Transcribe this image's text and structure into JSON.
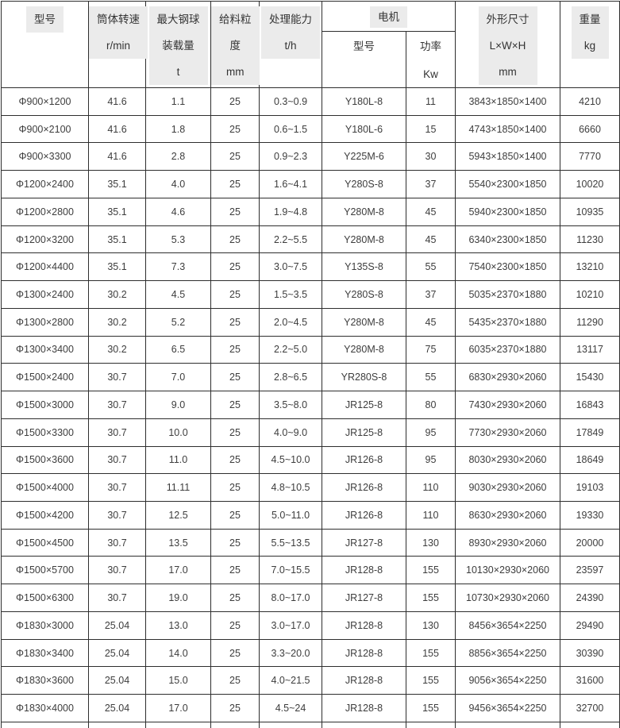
{
  "table": {
    "header": {
      "model": {
        "line1": "型号"
      },
      "speed": {
        "line1": "筒体转速",
        "line2": "r/min"
      },
      "ball_load": {
        "line1": "最大钢球",
        "line2": "装载量",
        "line3": "t"
      },
      "feed_size": {
        "line1": "给料粒",
        "line2": "度",
        "line3": "mm"
      },
      "capacity": {
        "line1": "处理能力",
        "line2": "t/h"
      },
      "motor_group": {
        "label": "电机"
      },
      "motor_model": {
        "line1": "型号"
      },
      "motor_power": {
        "line1": "功率",
        "line2": "Kw"
      },
      "dimensions": {
        "line1": "外形尺寸",
        "line2": "L×W×H",
        "line3": "mm"
      },
      "weight": {
        "line1": "重量",
        "line2": "kg"
      }
    },
    "columns": [
      "model",
      "speed-rpm",
      "max-ball-load-t",
      "feed-size-mm",
      "capacity-tph",
      "motor-model",
      "motor-power-kw",
      "dimensions-mm",
      "weight-kg"
    ],
    "rows": [
      [
        "Φ900×1200",
        "41.6",
        "1.1",
        "25",
        "0.3~0.9",
        "Y180L-8",
        "11",
        "3843×1850×1400",
        "4210"
      ],
      [
        "Φ900×2100",
        "41.6",
        "1.8",
        "25",
        "0.6~1.5",
        "Y180L-6",
        "15",
        "4743×1850×1400",
        "6660"
      ],
      [
        "Φ900×3300",
        "41.6",
        "2.8",
        "25",
        "0.9~2.3",
        "Y225M-6",
        "30",
        "5943×1850×1400",
        "7770"
      ],
      [
        "Φ1200×2400",
        "35.1",
        "4.0",
        "25",
        "1.6~4.1",
        "Y280S-8",
        "37",
        "5540×2300×1850",
        "10020"
      ],
      [
        "Φ1200×2800",
        "35.1",
        "4.6",
        "25",
        "1.9~4.8",
        "Y280M-8",
        "45",
        "5940×2300×1850",
        "10935"
      ],
      [
        "Φ1200×3200",
        "35.1",
        "5.3",
        "25",
        "2.2~5.5",
        "Y280M-8",
        "45",
        "6340×2300×1850",
        "11230"
      ],
      [
        "Φ1200×4400",
        "35.1",
        "7.3",
        "25",
        "3.0~7.5",
        "Y135S-8",
        "55",
        "7540×2300×1850",
        "13210"
      ],
      [
        "Φ1300×2400",
        "30.2",
        "4.5",
        "25",
        "1.5~3.5",
        "Y280S-8",
        "37",
        "5035×2370×1880",
        "10210"
      ],
      [
        "Φ1300×2800",
        "30.2",
        "5.2",
        "25",
        "2.0~4.5",
        "Y280M-8",
        "45",
        "5435×2370×1880",
        "11290"
      ],
      [
        "Φ1300×3400",
        "30.2",
        "6.5",
        "25",
        "2.2~5.0",
        "Y280M-8",
        "75",
        "6035×2370×1880",
        "13117"
      ],
      [
        "Φ1500×2400",
        "30.7",
        "7.0",
        "25",
        "2.8~6.5",
        "YR280S-8",
        "55",
        "6830×2930×2060",
        "15430"
      ],
      [
        "Φ1500×3000",
        "30.7",
        "9.0",
        "25",
        "3.5~8.0",
        "JR125-8",
        "80",
        "7430×2930×2060",
        "16843"
      ],
      [
        "Φ1500×3300",
        "30.7",
        "10.0",
        "25",
        "4.0~9.0",
        "JR125-8",
        "95",
        "7730×2930×2060",
        "17849"
      ],
      [
        "Φ1500×3600",
        "30.7",
        "11.0",
        "25",
        "4.5~10.0",
        "JR126-8",
        "95",
        "8030×2930×2060",
        "18649"
      ],
      [
        "Φ1500×4000",
        "30.7",
        "11.11",
        "25",
        "4.8~10.5",
        "JR126-8",
        "110",
        "9030×2930×2060",
        "19103"
      ],
      [
        "Φ1500×4200",
        "30.7",
        "12.5",
        "25",
        "5.0~11.0",
        "JR126-8",
        "110",
        "8630×2930×2060",
        "19330"
      ],
      [
        "Φ1500×4500",
        "30.7",
        "13.5",
        "25",
        "5.5~13.5",
        "JR127-8",
        "130",
        "8930×2930×2060",
        "20000"
      ],
      [
        "Φ1500×5700",
        "30.7",
        "17.0",
        "25",
        "7.0~15.5",
        "JR128-8",
        "155",
        "10130×2930×2060",
        "23597"
      ],
      [
        "Φ1500×6300",
        "30.7",
        "19.0",
        "25",
        "8.0~17.0",
        "JR127-8",
        "155",
        "10730×2930×2060",
        "24390"
      ],
      [
        "Φ1830×3000",
        "25.04",
        "13.0",
        "25",
        "3.0~17.0",
        "JR128-8",
        "130",
        "8456×3654×2250",
        "29490"
      ],
      [
        "Φ1830×3400",
        "25.04",
        "14.0",
        "25",
        "3.3~20.0",
        "JR128-8",
        "155",
        "8856×3654×2250",
        "30390"
      ],
      [
        "Φ1830×3600",
        "25.04",
        "15.0",
        "25",
        "4.0~21.5",
        "JR128-8",
        "155",
        "9056×3654×2250",
        "31600"
      ],
      [
        "Φ1830×4000",
        "25.04",
        "17.0",
        "25",
        "4.5~24",
        "JR128-8",
        "155",
        "9456×3654×2250",
        "32700"
      ]
    ]
  },
  "colors": {
    "border": "#2e2e2e",
    "header_highlight": "#ebebeb",
    "text": "#3d3d3d",
    "background": "#ffffff"
  }
}
